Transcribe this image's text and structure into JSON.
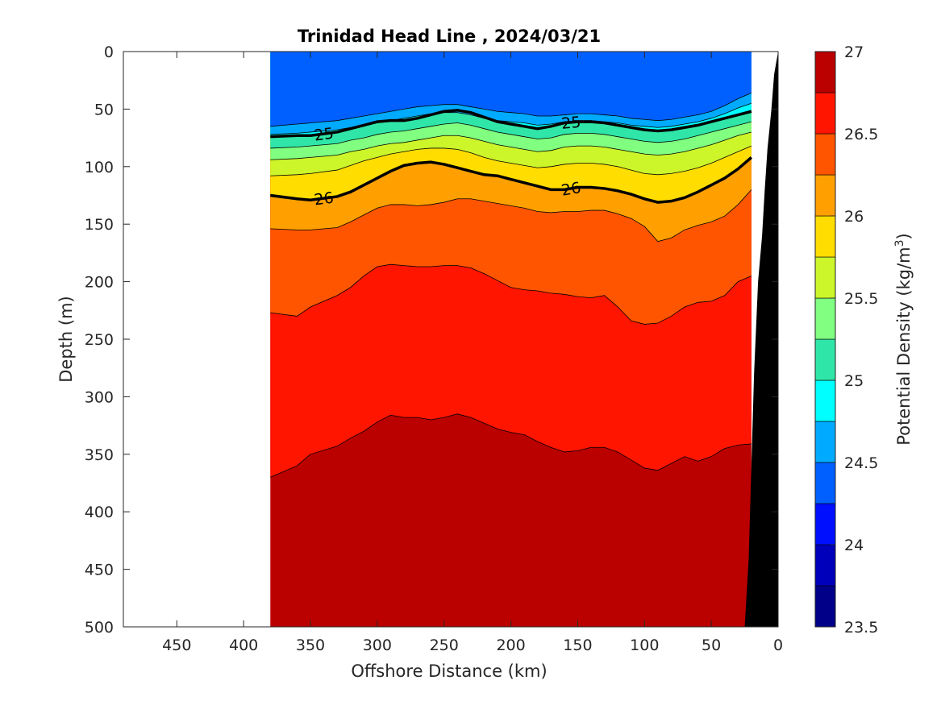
{
  "chart_data": {
    "type": "contourf",
    "title": "Trinidad Head Line , 2024/03/21",
    "xlabel": "Offshore Distance (km)",
    "ylabel": "Depth (m)",
    "colorbar_label": "Potential Density (kg/m",
    "colorbar_label_sup": "3",
    "colorbar_label_close": ")",
    "xlim": [
      490,
      0
    ],
    "ylim": [
      500,
      0
    ],
    "x_ticks": [
      450,
      400,
      350,
      300,
      250,
      200,
      150,
      100,
      50,
      0
    ],
    "y_ticks": [
      0,
      50,
      100,
      150,
      200,
      250,
      300,
      350,
      400,
      450,
      500
    ],
    "colorbar_ticks": [
      27,
      26.5,
      26,
      25.5,
      25,
      24.5,
      24,
      23.5
    ],
    "colorbar_range": [
      23.5,
      27
    ],
    "levels": [
      23.5,
      23.75,
      24,
      24.25,
      24.5,
      24.75,
      25,
      25.25,
      25.5,
      25.75,
      26,
      26.25,
      26.5,
      26.75,
      27
    ],
    "level_colors": [
      "#000088",
      "#0000bb",
      "#0010ff",
      "#0060ff",
      "#00aaff",
      "#00ffff",
      "#2fe6a8",
      "#80ff80",
      "#ccf52a",
      "#ffdd00",
      "#ffa000",
      "#ff5500",
      "#ff1500",
      "#bb0000"
    ],
    "labeled_contours": [
      {
        "level": 25,
        "label": "25"
      },
      {
        "level": 26,
        "label": "26"
      }
    ],
    "section": {
      "station_x": [
        380,
        360,
        350,
        330,
        320,
        310,
        300,
        290,
        280,
        270,
        260,
        250,
        240,
        230,
        220,
        210,
        200,
        190,
        180,
        170,
        160,
        150,
        140,
        130,
        120,
        110,
        100,
        90,
        80,
        70,
        60,
        50,
        40,
        30,
        20
      ],
      "band_bottoms": [
        {
          "level": 24.5,
          "depth": [
            65,
            63,
            62,
            60,
            58,
            56,
            54,
            52,
            50,
            48,
            47,
            46,
            46,
            48,
            50,
            52,
            53,
            54,
            56,
            56,
            55,
            54,
            54,
            55,
            56,
            58,
            59,
            60,
            59,
            57,
            55,
            52,
            47,
            41,
            36
          ]
        },
        {
          "level": 24.75,
          "depth": [
            72,
            71,
            70,
            68,
            66,
            64,
            62,
            60,
            58,
            56,
            54,
            53,
            53,
            55,
            58,
            60,
            61,
            62,
            64,
            63,
            61,
            60,
            60,
            61,
            62,
            64,
            65,
            66,
            65,
            63,
            61,
            58,
            54,
            49,
            45
          ]
        },
        {
          "level": 25,
          "depth": [
            74,
            73,
            73,
            70,
            67,
            64,
            61,
            60,
            60,
            58,
            55,
            52,
            51,
            53,
            57,
            61,
            63,
            65,
            67,
            65,
            62,
            61,
            61,
            62,
            64,
            66,
            68,
            69,
            68,
            66,
            64,
            61,
            58,
            55,
            52
          ]
        },
        {
          "level": 25.25,
          "depth": [
            84,
            83,
            82,
            80,
            77,
            75,
            72,
            70,
            69,
            67,
            65,
            63,
            62,
            64,
            67,
            70,
            72,
            74,
            76,
            75,
            72,
            71,
            71,
            72,
            74,
            76,
            78,
            79,
            78,
            76,
            73,
            70,
            67,
            64,
            61
          ]
        },
        {
          "level": 25.5,
          "depth": [
            94,
            93,
            92,
            90,
            87,
            85,
            82,
            80,
            79,
            77,
            75,
            73,
            73,
            75,
            78,
            81,
            83,
            85,
            87,
            86,
            83,
            82,
            82,
            83,
            85,
            87,
            89,
            90,
            89,
            87,
            84,
            81,
            77,
            73,
            70
          ]
        },
        {
          "level": 25.75,
          "depth": [
            108,
            107,
            106,
            103,
            99,
            95,
            92,
            89,
            87,
            85,
            84,
            84,
            85,
            88,
            92,
            95,
            97,
            99,
            101,
            100,
            98,
            97,
            97,
            98,
            100,
            103,
            106,
            107,
            106,
            104,
            101,
            97,
            92,
            87,
            82
          ]
        },
        {
          "level": 26,
          "depth": [
            125,
            128,
            129,
            126,
            122,
            116,
            110,
            104,
            99,
            97,
            96,
            98,
            101,
            104,
            107,
            108,
            111,
            114,
            117,
            120,
            120,
            118,
            118,
            119,
            121,
            124,
            128,
            131,
            130,
            127,
            122,
            116,
            110,
            102,
            92
          ]
        },
        {
          "level": 26.25,
          "depth": [
            154,
            155,
            155,
            153,
            148,
            142,
            136,
            133,
            133,
            134,
            133,
            131,
            128,
            128,
            130,
            132,
            134,
            136,
            139,
            140,
            139,
            139,
            138,
            138,
            141,
            145,
            152,
            165,
            162,
            155,
            151,
            148,
            143,
            133,
            120
          ]
        },
        {
          "level": 26.5,
          "depth": [
            227,
            230,
            222,
            212,
            205,
            195,
            187,
            185,
            186,
            187,
            187,
            186,
            186,
            188,
            193,
            199,
            205,
            207,
            208,
            210,
            211,
            213,
            214,
            212,
            222,
            234,
            237,
            236,
            230,
            222,
            218,
            217,
            212,
            200,
            195
          ]
        },
        {
          "level": 26.75,
          "depth": [
            370,
            360,
            350,
            343,
            336,
            330,
            322,
            316,
            318,
            318,
            320,
            318,
            315,
            318,
            323,
            328,
            331,
            333,
            339,
            344,
            348,
            347,
            344,
            344,
            348,
            355,
            362,
            364,
            358,
            352,
            356,
            352,
            345,
            342,
            341
          ]
        }
      ],
      "deep_level": 26.9,
      "inshore_shallow": {
        "x": [
          90,
          85,
          80,
          70,
          60,
          50,
          40,
          30,
          25,
          22
        ],
        "depth_blue": [
          20,
          12,
          8,
          5,
          4,
          4,
          4,
          4,
          4,
          4
        ],
        "depth_bottom": [
          40,
          40,
          36,
          32,
          30,
          28,
          24,
          20,
          16,
          14
        ]
      }
    },
    "bathymetry": {
      "x": [
        0,
        3,
        5,
        8,
        10,
        12,
        15,
        18,
        20,
        22,
        25
      ],
      "depth": [
        0,
        20,
        50,
        85,
        120,
        160,
        200,
        280,
        360,
        440,
        500
      ]
    }
  }
}
